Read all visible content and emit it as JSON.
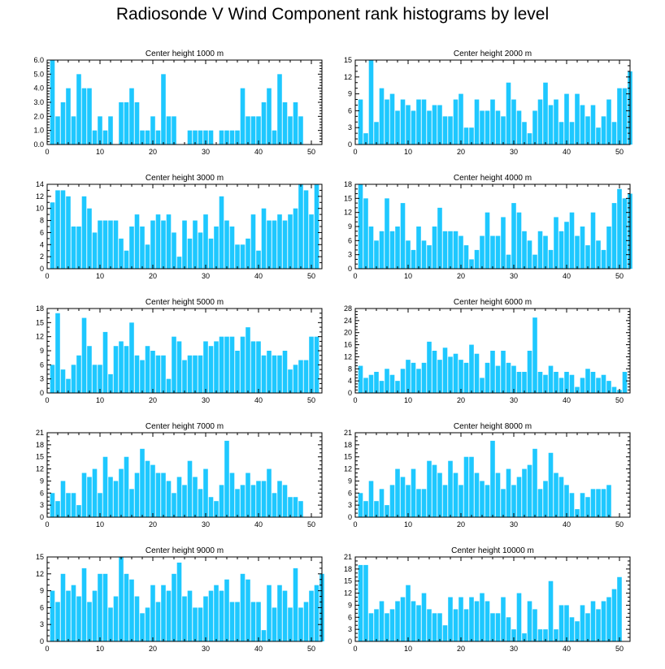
{
  "title": "Radiosonde V Wind Component rank histograms by level",
  "colors": {
    "bar": "#1EC8FF",
    "axis": "#000000"
  },
  "chart_data": [
    {
      "type": "bar",
      "title": "Center height 1000 m",
      "ylim": [
        0,
        6.0
      ],
      "yticks": [
        0,
        1,
        2,
        3,
        4,
        5,
        6
      ],
      "ytick_labels": [
        "0.0",
        "1.0",
        "2.0",
        "3.0",
        "4.0",
        "5.0",
        "6.0"
      ],
      "xlim": [
        0,
        52
      ],
      "xticks": [
        0,
        10,
        20,
        30,
        40,
        50
      ],
      "yminor": 5,
      "values": [
        6,
        2,
        3,
        4,
        2,
        5,
        4,
        4,
        1,
        2,
        1,
        2,
        0,
        3,
        3,
        4,
        3,
        1,
        1,
        2,
        1,
        5,
        2,
        2,
        0,
        0,
        1,
        1,
        1,
        1,
        1,
        0,
        1,
        1,
        1,
        1,
        4,
        2,
        2,
        2,
        3,
        4,
        1,
        5,
        3,
        2,
        3,
        2,
        0,
        0,
        0
      ]
    },
    {
      "type": "bar",
      "title": "Center height 2000 m",
      "ylim": [
        0,
        15
      ],
      "yticks": [
        0,
        3,
        6,
        9,
        12,
        15
      ],
      "ytick_labels": [
        "0",
        "3",
        "6",
        "9",
        "12",
        "15"
      ],
      "xlim": [
        0,
        52
      ],
      "xticks": [
        0,
        10,
        20,
        30,
        40,
        50
      ],
      "yminor": 3,
      "values": [
        8,
        2,
        15,
        4,
        10,
        8,
        9,
        6,
        8,
        7,
        6,
        8,
        8,
        6,
        7,
        7,
        5,
        5,
        8,
        9,
        3,
        3,
        8,
        6,
        6,
        8,
        6,
        5,
        11,
        8,
        6,
        4,
        2,
        6,
        8,
        11,
        7,
        8,
        4,
        9,
        4,
        9,
        7,
        5,
        7,
        3,
        5,
        8,
        4,
        10,
        10,
        13
      ]
    },
    {
      "type": "bar",
      "title": "Center height 3000 m",
      "ylim": [
        0,
        14
      ],
      "yticks": [
        0,
        2,
        4,
        6,
        8,
        10,
        12,
        14
      ],
      "ytick_labels": [
        "0",
        "2",
        "4",
        "6",
        "8",
        "10",
        "12",
        "14"
      ],
      "xlim": [
        0,
        52
      ],
      "xticks": [
        0,
        10,
        20,
        30,
        40,
        50
      ],
      "yminor": 2,
      "values": [
        11,
        13,
        13,
        12,
        7,
        7,
        12,
        10,
        6,
        8,
        8,
        8,
        8,
        5,
        3,
        7,
        9,
        7,
        4,
        8,
        9,
        8,
        9,
        6,
        2,
        8,
        5,
        8,
        6,
        9,
        5,
        7,
        12,
        8,
        7,
        4,
        4,
        5,
        9,
        3,
        10,
        8,
        8,
        9,
        8,
        9,
        10,
        14,
        13,
        9,
        14
      ]
    },
    {
      "type": "bar",
      "title": "Center height 4000 m",
      "ylim": [
        0,
        18
      ],
      "yticks": [
        0,
        3,
        6,
        9,
        12,
        15,
        18
      ],
      "ytick_labels": [
        "0",
        "3",
        "6",
        "9",
        "12",
        "15",
        "18"
      ],
      "xlim": [
        0,
        52
      ],
      "xticks": [
        0,
        10,
        20,
        30,
        40,
        50
      ],
      "yminor": 3,
      "values": [
        18,
        15,
        9,
        6,
        8,
        15,
        8,
        9,
        14,
        6,
        4,
        9,
        6,
        5,
        9,
        13,
        8,
        8,
        8,
        7,
        5,
        2,
        4,
        7,
        12,
        7,
        7,
        11,
        3,
        14,
        12,
        8,
        6,
        3,
        8,
        7,
        4,
        11,
        8,
        10,
        12,
        7,
        9,
        5,
        12,
        6,
        4,
        9,
        14,
        17,
        15,
        16
      ]
    },
    {
      "type": "bar",
      "title": "Center height 5000 m",
      "ylim": [
        0,
        18
      ],
      "yticks": [
        0,
        3,
        6,
        9,
        12,
        15,
        18
      ],
      "ytick_labels": [
        "0",
        "3",
        "6",
        "9",
        "12",
        "15",
        "18"
      ],
      "xlim": [
        0,
        52
      ],
      "xticks": [
        0,
        10,
        20,
        30,
        40,
        50
      ],
      "yminor": 3,
      "values": [
        6,
        17,
        5,
        3,
        6,
        8,
        16,
        10,
        6,
        6,
        13,
        4,
        10,
        11,
        10,
        15,
        8,
        7,
        10,
        9,
        8,
        8,
        3,
        12,
        11,
        7,
        8,
        8,
        8,
        11,
        10,
        11,
        12,
        12,
        12,
        9,
        12,
        14,
        11,
        11,
        8,
        9,
        8,
        8,
        9,
        5,
        6,
        7,
        7,
        12,
        12
      ]
    },
    {
      "type": "bar",
      "title": "Center height 6000 m",
      "ylim": [
        0,
        28
      ],
      "yticks": [
        0,
        4,
        8,
        12,
        16,
        20,
        24,
        28
      ],
      "ytick_labels": [
        "0",
        "4",
        "8",
        "12",
        "16",
        "20",
        "24",
        "28"
      ],
      "xlim": [
        0,
        52
      ],
      "xticks": [
        0,
        10,
        20,
        30,
        40,
        50
      ],
      "yminor": 4,
      "values": [
        9,
        5,
        6,
        7,
        4,
        8,
        6,
        4,
        8,
        11,
        10,
        8,
        10,
        17,
        14,
        11,
        15,
        12,
        13,
        11,
        10,
        16,
        13,
        5,
        10,
        14,
        9,
        14,
        10,
        9,
        7,
        7,
        14,
        25,
        7,
        6,
        9,
        7,
        5,
        7,
        6,
        2,
        5,
        8,
        7,
        5,
        6,
        4,
        2,
        1,
        7
      ]
    },
    {
      "type": "bar",
      "title": "Center height 7000 m",
      "ylim": [
        0,
        21
      ],
      "yticks": [
        0,
        3,
        6,
        9,
        12,
        15,
        18,
        21
      ],
      "ytick_labels": [
        "0",
        "3",
        "6",
        "9",
        "12",
        "15",
        "18",
        "21"
      ],
      "xlim": [
        0,
        52
      ],
      "xticks": [
        0,
        10,
        20,
        30,
        40,
        50
      ],
      "yminor": 3,
      "values": [
        6,
        4,
        9,
        6,
        6,
        3,
        11,
        10,
        12,
        6,
        15,
        10,
        9,
        12,
        15,
        7,
        11,
        17,
        14,
        13,
        11,
        11,
        9,
        6,
        10,
        8,
        14,
        10,
        7,
        12,
        5,
        4,
        8,
        19,
        11,
        7,
        8,
        11,
        8,
        9,
        9,
        12,
        6,
        9,
        8,
        5,
        5,
        4
      ]
    },
    {
      "type": "bar",
      "title": "Center height 8000 m",
      "ylim": [
        0,
        21
      ],
      "yticks": [
        0,
        3,
        6,
        9,
        12,
        15,
        18,
        21
      ],
      "ytick_labels": [
        "0",
        "3",
        "6",
        "9",
        "12",
        "15",
        "18",
        "21"
      ],
      "xlim": [
        0,
        52
      ],
      "xticks": [
        0,
        10,
        20,
        30,
        40,
        50
      ],
      "yminor": 3,
      "values": [
        6,
        4,
        9,
        4,
        7,
        3,
        8,
        12,
        10,
        8,
        12,
        7,
        7,
        14,
        13,
        11,
        8,
        14,
        11,
        8,
        15,
        15,
        11,
        9,
        8,
        19,
        11,
        7,
        12,
        8,
        10,
        12,
        13,
        17,
        7,
        9,
        16,
        11,
        10,
        8,
        6,
        2,
        6,
        5,
        7,
        7,
        7,
        8
      ]
    },
    {
      "type": "bar",
      "title": "Center height 9000 m",
      "ylim": [
        0,
        15
      ],
      "yticks": [
        0,
        3,
        6,
        9,
        12,
        15
      ],
      "ytick_labels": [
        "0",
        "3",
        "6",
        "9",
        "12",
        "15"
      ],
      "xlim": [
        0,
        52
      ],
      "xticks": [
        0,
        10,
        20,
        30,
        40,
        50
      ],
      "yminor": 3,
      "values": [
        9,
        7,
        12,
        9,
        10,
        8,
        13,
        7,
        9,
        12,
        12,
        6,
        8,
        15,
        12,
        11,
        8,
        5,
        6,
        10,
        7,
        10,
        9,
        12,
        14,
        8,
        9,
        6,
        6,
        8,
        9,
        10,
        9,
        11,
        7,
        7,
        12,
        11,
        7,
        7,
        2,
        10,
        6,
        10,
        9,
        6,
        13,
        6,
        7,
        9,
        10,
        12
      ]
    },
    {
      "type": "bar",
      "title": "Center height 10000 m",
      "ylim": [
        0,
        21
      ],
      "yticks": [
        0,
        3,
        6,
        9,
        12,
        15,
        18,
        21
      ],
      "ytick_labels": [
        "0",
        "3",
        "6",
        "9",
        "12",
        "15",
        "18",
        "21"
      ],
      "xlim": [
        0,
        52
      ],
      "xticks": [
        0,
        10,
        20,
        30,
        40,
        50
      ],
      "yminor": 3,
      "values": [
        19,
        19,
        7,
        8,
        10,
        7,
        8,
        10,
        11,
        14,
        10,
        9,
        12,
        8,
        7,
        7,
        4,
        11,
        8,
        11,
        8,
        11,
        10,
        12,
        10,
        7,
        7,
        11,
        6,
        3,
        12,
        2,
        10,
        8,
        3,
        3,
        15,
        3,
        9,
        9,
        6,
        5,
        9,
        7,
        10,
        8,
        10,
        11,
        13,
        16
      ]
    }
  ]
}
